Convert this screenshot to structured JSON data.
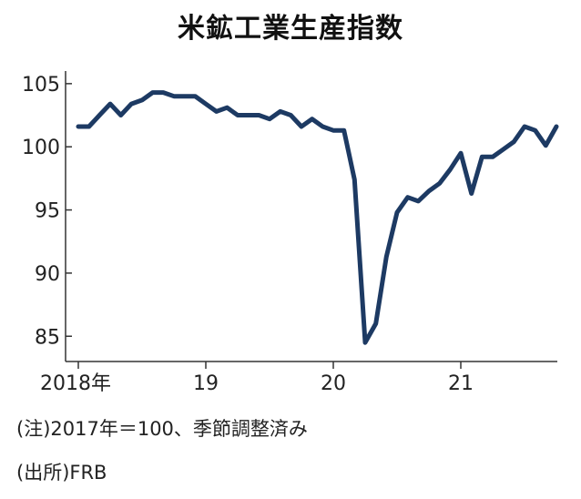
{
  "title": "米鉱工業生産指数",
  "notes": {
    "note": "(注)2017年＝100、季節調整済み",
    "source": "(出所)FRB"
  },
  "colors": {
    "line": "#1d3a63",
    "axis": "#333333",
    "text": "#222222"
  },
  "chart_data": {
    "type": "line",
    "title": "米鉱工業生産指数",
    "xlabel": "",
    "ylabel": "",
    "ylim": [
      83,
      106
    ],
    "yticks": [
      85,
      90,
      95,
      100,
      105
    ],
    "ytick_labels": [
      "85",
      "90",
      "95",
      "100",
      "105"
    ],
    "xtick_labels": [
      "2018年",
      "19",
      "20",
      "21"
    ],
    "xtick_months": [
      "2018-01",
      "2019-01",
      "2020-01",
      "2021-01"
    ],
    "grid": false,
    "legend": "none",
    "series": [
      {
        "x": [
          "2018-01",
          "2018-02",
          "2018-03",
          "2018-04",
          "2018-05",
          "2018-06",
          "2018-07",
          "2018-08",
          "2018-09",
          "2018-10",
          "2018-11",
          "2018-12",
          "2019-01",
          "2019-02",
          "2019-03",
          "2019-04",
          "2019-05",
          "2019-06",
          "2019-07",
          "2019-08",
          "2019-09",
          "2019-10",
          "2019-11",
          "2019-12",
          "2020-01",
          "2020-02",
          "2020-03",
          "2020-04",
          "2020-05",
          "2020-06",
          "2020-07",
          "2020-08",
          "2020-09",
          "2020-10",
          "2020-11",
          "2020-12",
          "2021-01",
          "2021-02",
          "2021-03",
          "2021-04",
          "2021-05",
          "2021-06",
          "2021-07",
          "2021-08",
          "2021-09",
          "2021-10"
        ],
        "y": [
          101.6,
          101.6,
          102.5,
          103.4,
          102.5,
          103.4,
          103.7,
          104.3,
          104.3,
          104.0,
          104.0,
          104.0,
          103.4,
          102.8,
          103.1,
          102.5,
          102.5,
          102.5,
          102.2,
          102.8,
          102.5,
          101.6,
          102.2,
          101.6,
          101.3,
          101.3,
          97.4,
          84.5,
          86.0,
          91.3,
          94.8,
          96.0,
          95.7,
          96.5,
          97.1,
          98.2,
          99.5,
          96.3,
          99.2,
          99.2,
          99.8,
          100.4,
          101.6,
          101.3,
          100.1,
          101.6
        ]
      }
    ]
  }
}
